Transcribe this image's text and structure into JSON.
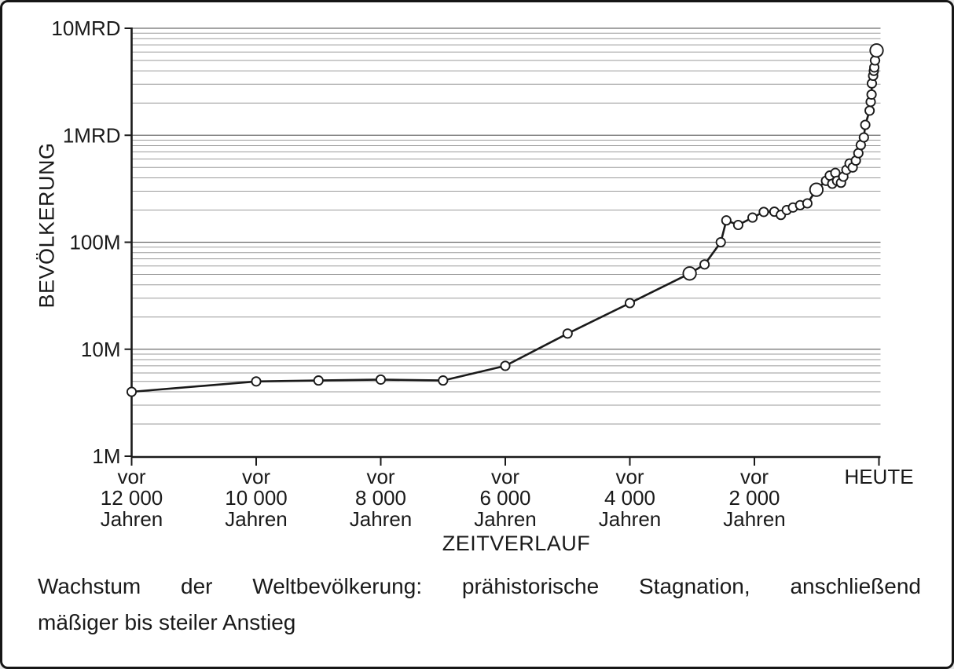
{
  "chart_data": {
    "type": "line",
    "title": "",
    "xlabel": "ZEITVERLAUF",
    "ylabel": "BEVÖLKERUNG",
    "y_scale": "log",
    "ylim_millions": [
      1,
      10000
    ],
    "x_range_years_ago": [
      12000,
      0
    ],
    "grid": "minor-log-horizontal",
    "legend": "none",
    "line_color": "#1a1a1a",
    "marker_fill": "#ffffff",
    "gridline_color": "#9a9a9a",
    "y_ticks": [
      {
        "label": "1M",
        "value_millions": 1
      },
      {
        "label": "10M",
        "value_millions": 10
      },
      {
        "label": "100M",
        "value_millions": 100
      },
      {
        "label": "1MRD",
        "value_millions": 1000
      },
      {
        "label": "10MRD",
        "value_millions": 10000
      }
    ],
    "x_ticks": [
      {
        "years_ago": 12000,
        "label_lines": [
          "vor",
          "12 000",
          "Jahren"
        ]
      },
      {
        "years_ago": 10000,
        "label_lines": [
          "vor",
          "10 000",
          "Jahren"
        ]
      },
      {
        "years_ago": 8000,
        "label_lines": [
          "vor",
          "8 000",
          "Jahren"
        ]
      },
      {
        "years_ago": 6000,
        "label_lines": [
          "vor",
          "6 000",
          "Jahren"
        ]
      },
      {
        "years_ago": 4000,
        "label_lines": [
          "vor",
          "4 000",
          "Jahren"
        ]
      },
      {
        "years_ago": 2000,
        "label_lines": [
          "vor",
          "2 000",
          "Jahren"
        ]
      },
      {
        "years_ago": 0,
        "label_lines": [
          "HEUTE"
        ]
      }
    ],
    "series": [
      {
        "name": "Weltbevölkerung",
        "points_format": "[years_ago, population_millions, large_marker]",
        "points": [
          [
            12000,
            4.0,
            0
          ],
          [
            10000,
            5.0,
            0
          ],
          [
            9000,
            5.1,
            0
          ],
          [
            8000,
            5.2,
            0
          ],
          [
            7000,
            5.1,
            0
          ],
          [
            6000,
            7.0,
            0
          ],
          [
            5000,
            14,
            0
          ],
          [
            4000,
            27,
            0
          ],
          [
            3040,
            51,
            1
          ],
          [
            2800,
            62,
            0
          ],
          [
            2540,
            100,
            0
          ],
          [
            2450,
            160,
            0
          ],
          [
            2260,
            145,
            0
          ],
          [
            2030,
            170,
            0
          ],
          [
            1850,
            192,
            0
          ],
          [
            1680,
            193,
            0
          ],
          [
            1575,
            180,
            0
          ],
          [
            1480,
            200,
            0
          ],
          [
            1380,
            211,
            0
          ],
          [
            1265,
            222,
            0
          ],
          [
            1150,
            231,
            0
          ],
          [
            1005,
            310,
            1
          ],
          [
            850,
            375,
            0
          ],
          [
            790,
            420,
            0
          ],
          [
            750,
            352,
            0
          ],
          [
            700,
            445,
            0
          ],
          [
            673,
            375,
            0
          ],
          [
            610,
            360,
            0
          ],
          [
            572,
            410,
            0
          ],
          [
            522,
            475,
            0
          ],
          [
            472,
            545,
            0
          ],
          [
            421,
            500,
            0
          ],
          [
            371,
            580,
            0
          ],
          [
            330,
            680,
            0
          ],
          [
            292,
            810,
            0
          ],
          [
            242,
            955,
            0
          ],
          [
            220,
            1250,
            0
          ],
          [
            150,
            1700,
            0
          ],
          [
            132,
            2050,
            0
          ],
          [
            119,
            2400,
            0
          ],
          [
            113,
            3050,
            0
          ],
          [
            94,
            3600,
            0
          ],
          [
            82,
            4000,
            0
          ],
          [
            75,
            4300,
            0
          ],
          [
            63,
            5000,
            0
          ],
          [
            38,
            6200,
            1
          ]
        ]
      }
    ],
    "caption_line1": "Wachstum der Weltbevölkerung: prähistorische Stagnation, anschließend",
    "caption_line2": "mäßiger bis steiler Anstieg"
  }
}
